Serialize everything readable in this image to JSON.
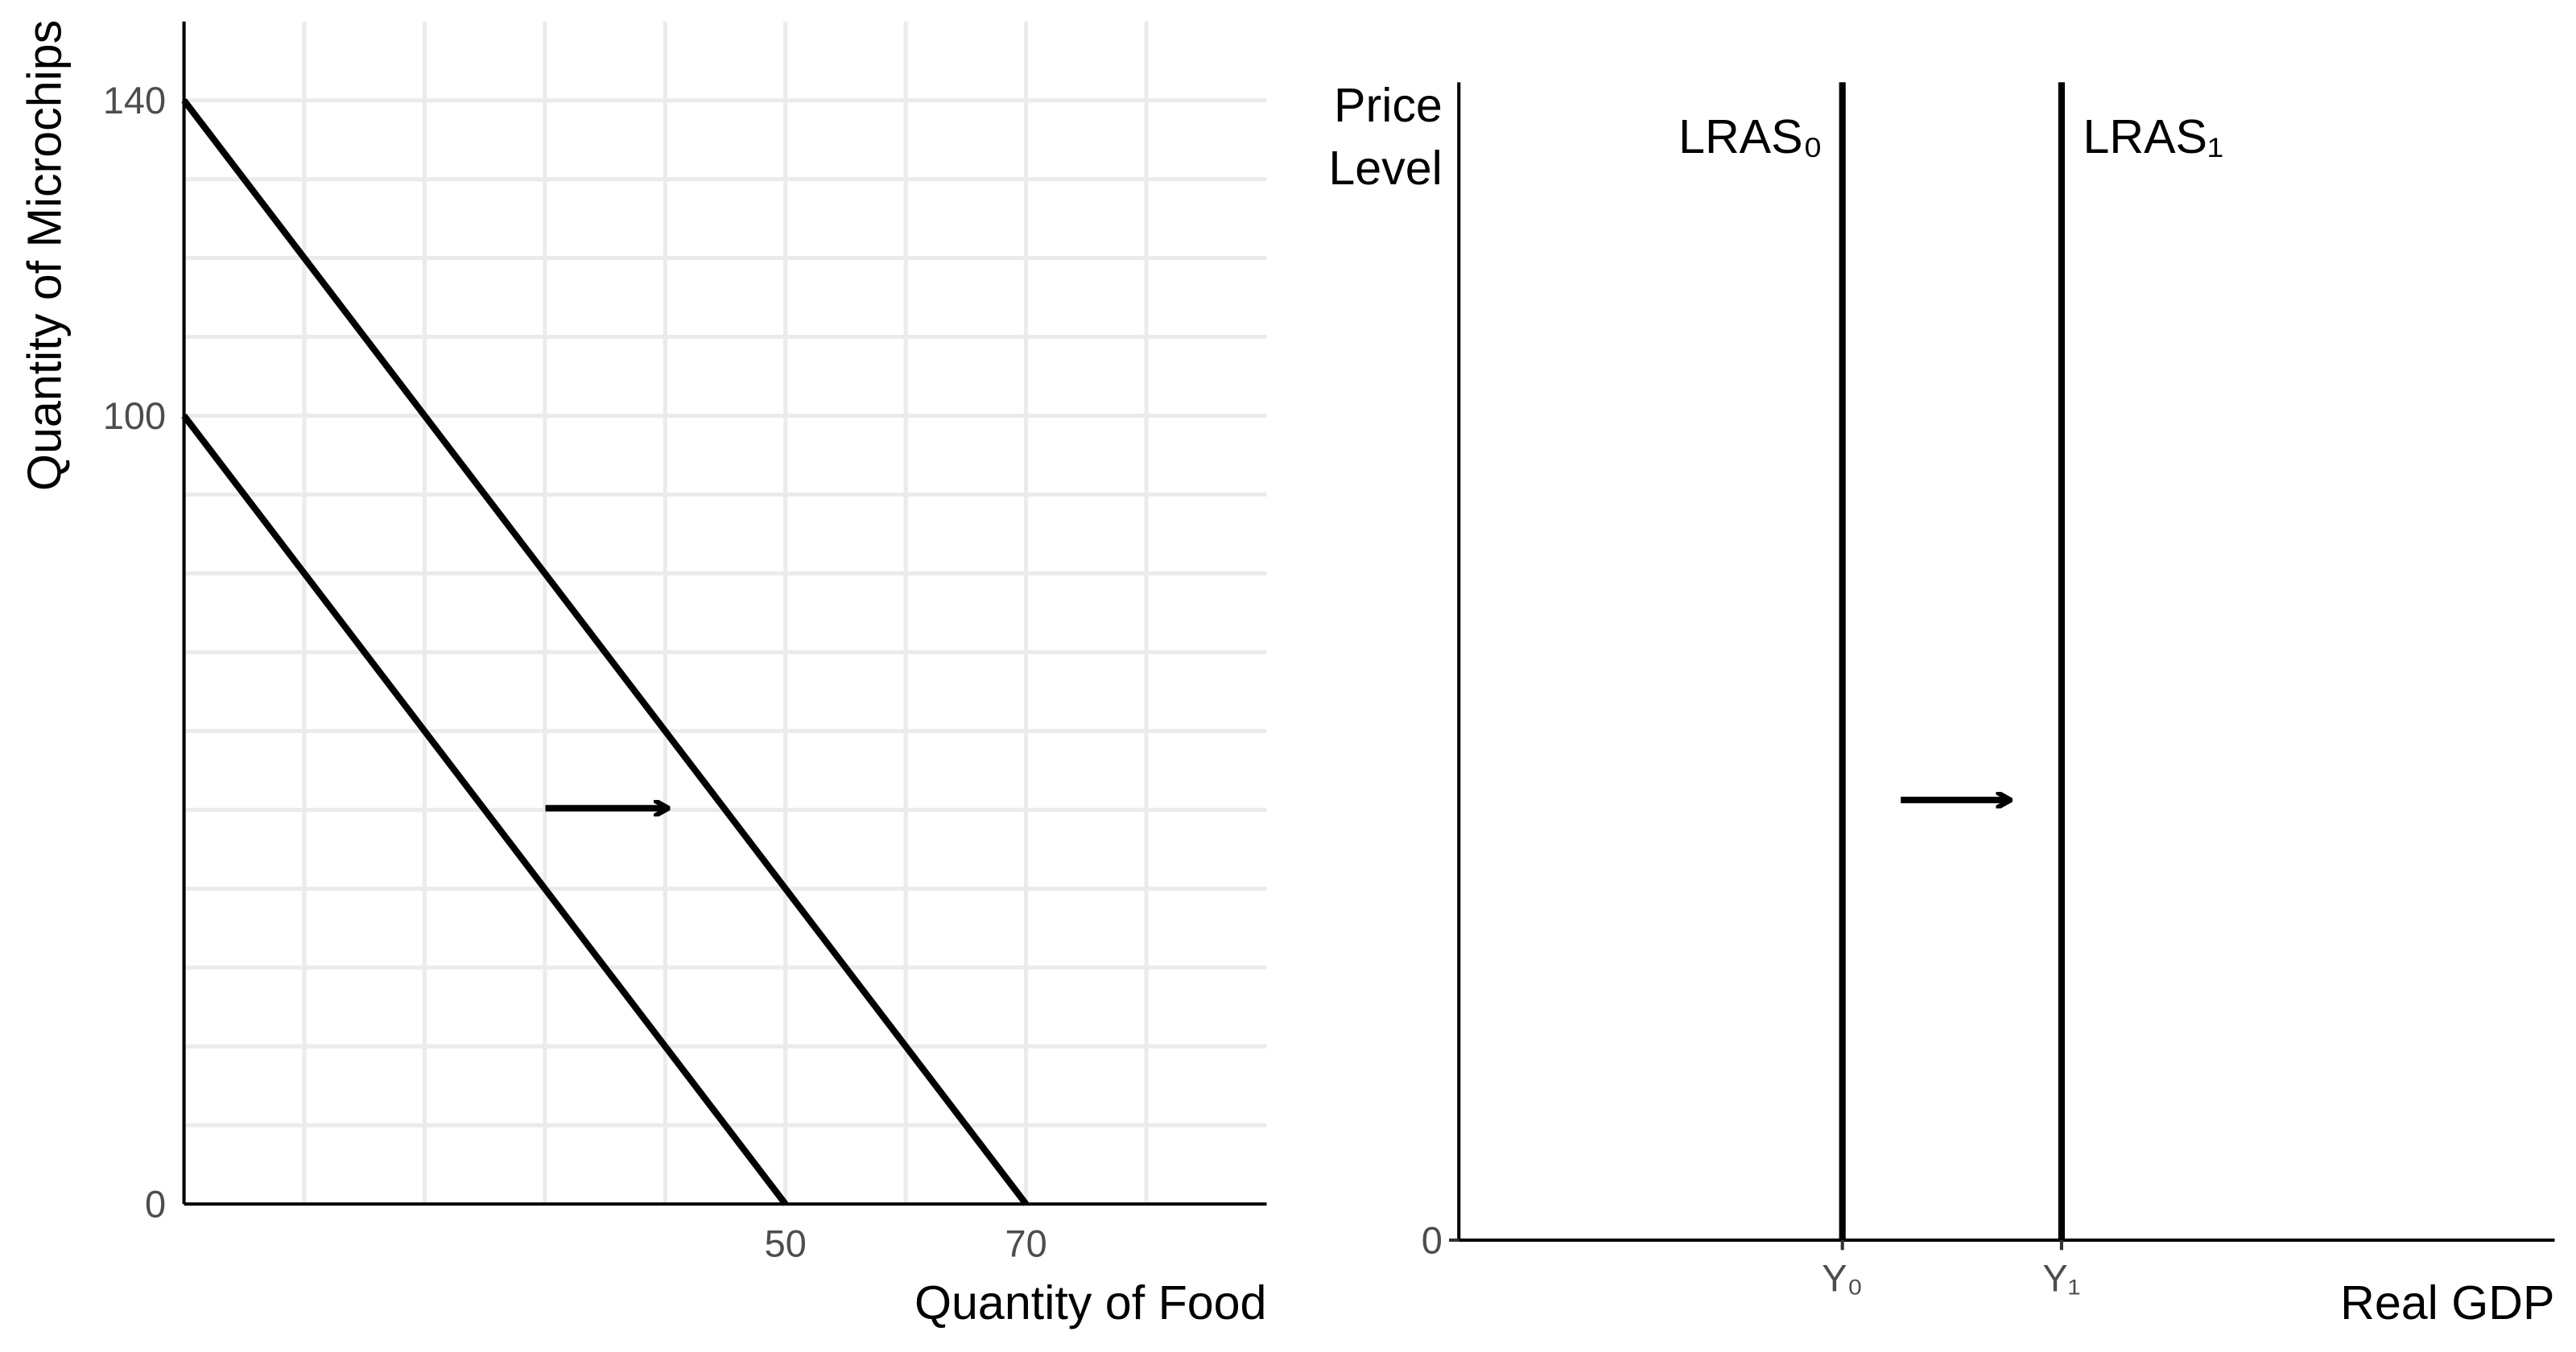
{
  "chart_data": [
    {
      "type": "line",
      "xlabel": "Quantity of Food",
      "ylabel": "Quantity of Microchips",
      "xlim": [
        0,
        90
      ],
      "ylim": [
        0,
        150
      ],
      "xticks": [
        50,
        70
      ],
      "yticks": [
        0,
        100,
        140
      ],
      "xgrid": [
        10,
        20,
        30,
        40,
        50,
        60,
        70,
        80
      ],
      "ygrid": [
        10,
        20,
        30,
        40,
        50,
        60,
        70,
        80,
        90,
        100,
        110,
        120,
        130,
        140
      ],
      "grid_color": "#ebebeb",
      "series": [
        {
          "color": "#000000",
          "x": [
            0,
            50
          ],
          "values": [
            100,
            0
          ]
        },
        {
          "color": "#000000",
          "x": [
            0,
            70
          ],
          "values": [
            140,
            0
          ]
        }
      ]
    },
    {
      "type": "vline",
      "xlabel": "Real GDP",
      "ylabel": [
        "Price",
        "Level"
      ],
      "xlim": [
        0,
        100
      ],
      "ylim": [
        0,
        100
      ],
      "xticks": [
        {
          "value": 35,
          "label": "Y₀"
        },
        {
          "value": 55,
          "label": "Y₁"
        }
      ],
      "yticks": [
        0
      ],
      "series": [
        {
          "name": "LRAS₀",
          "color": "#000000",
          "x": 35
        },
        {
          "name": "LRAS₁",
          "color": "#000000",
          "x": 55
        }
      ]
    }
  ]
}
